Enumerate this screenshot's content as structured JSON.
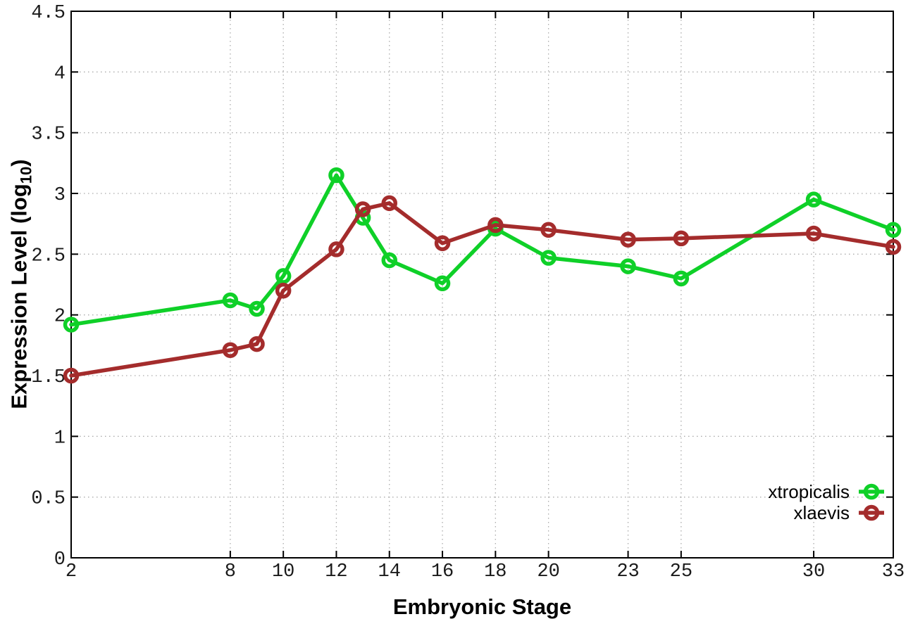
{
  "figure": {
    "xlabel": "Embryonic Stage",
    "ylabel_main": "Expression Level (log",
    "ylabel_sub": "10",
    "ylabel_end": ")"
  },
  "chart_data": {
    "type": "line",
    "title": "",
    "xlabel": "Embryonic Stage",
    "ylabel": "Expression Level (log10)",
    "x": [
      2,
      8,
      9,
      10,
      12,
      13,
      14,
      16,
      18,
      20,
      23,
      25,
      30,
      33
    ],
    "series": [
      {
        "name": "xtropicalis",
        "color": "#0fd028",
        "values": [
          1.92,
          2.12,
          2.05,
          2.32,
          3.15,
          2.8,
          2.45,
          2.26,
          2.71,
          2.47,
          2.4,
          2.3,
          2.95,
          2.7
        ]
      },
      {
        "name": "xlaevis",
        "color": "#a42c2c",
        "values": [
          1.5,
          1.71,
          1.76,
          2.2,
          2.54,
          2.87,
          2.92,
          2.59,
          2.74,
          2.7,
          2.62,
          2.63,
          2.67,
          2.56
        ]
      }
    ],
    "xlim": [
      2,
      33
    ],
    "ylim": [
      0,
      4.5
    ],
    "x_ticks": [
      2,
      8,
      10,
      12,
      14,
      16,
      18,
      20,
      23,
      25,
      30,
      33
    ],
    "x_tick_labels": [
      "2",
      "8",
      "10",
      "12",
      "14",
      "16",
      "18",
      "20",
      "23",
      "25",
      "30",
      "33"
    ],
    "y_ticks": [
      0,
      0.5,
      1,
      1.5,
      2,
      2.5,
      3,
      3.5,
      4,
      4.5
    ],
    "y_tick_labels": [
      "0",
      "0.5",
      "1",
      "1.5",
      "2",
      "2.5",
      "3",
      "3.5",
      "4",
      "4.5"
    ],
    "grid": true,
    "marker": "open-circle",
    "legend_position": "inside-bottom-right",
    "colors": {
      "grid": "#ababab",
      "axis": "#000000",
      "text": "#000000",
      "background": "#ffffff"
    }
  }
}
